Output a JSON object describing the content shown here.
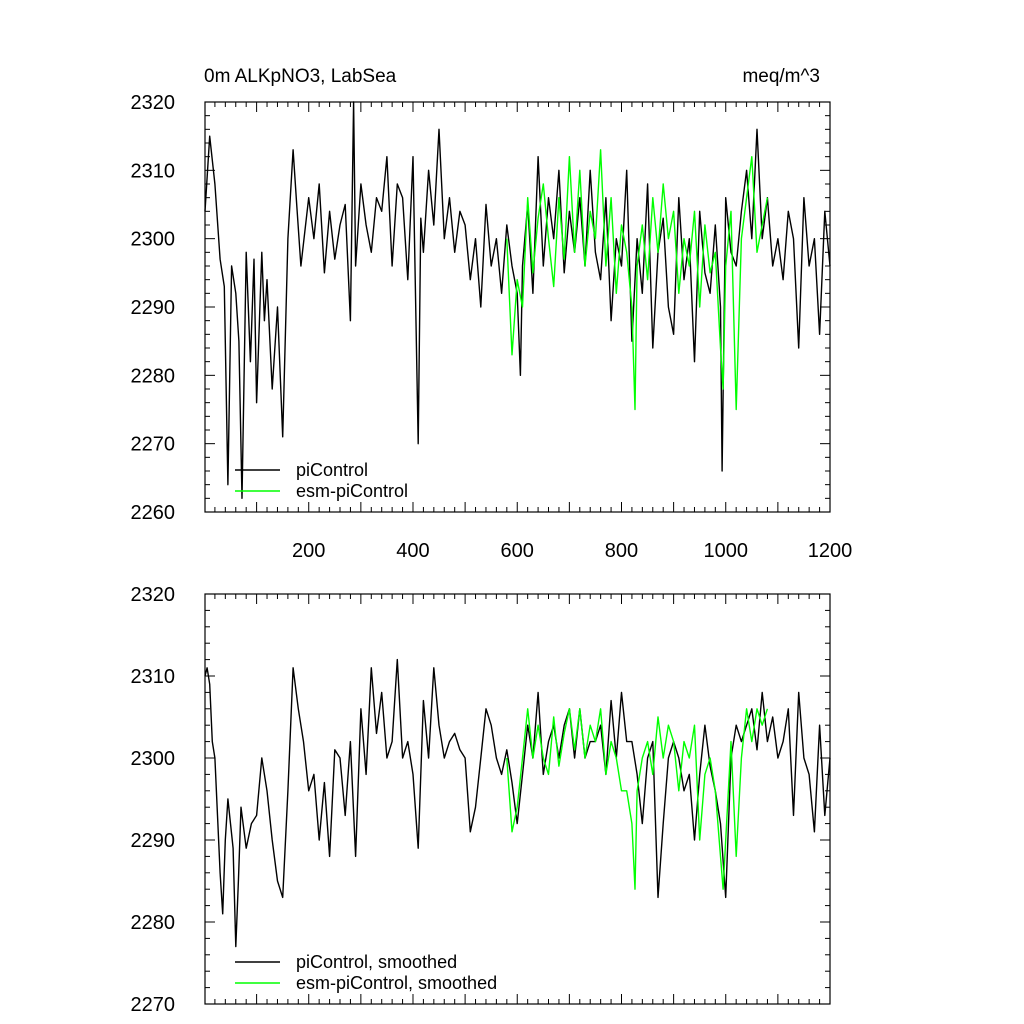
{
  "chart_data": [
    {
      "type": "line",
      "title_left": "0m ALKpNO3, LabSea",
      "title_right": "meq/m^3",
      "xlim": [
        1,
        1200
      ],
      "ylim": [
        2260,
        2320
      ],
      "x_ticks": [
        200,
        400,
        600,
        800,
        1000,
        1200
      ],
      "x_tick_labels": [
        "200",
        "400",
        "600",
        "800",
        "1000",
        "1200"
      ],
      "y_ticks": [
        2260,
        2270,
        2280,
        2290,
        2300,
        2310,
        2320
      ],
      "y_tick_labels": [
        "2260",
        "2270",
        "2280",
        "2290",
        "2300",
        "2310",
        "2320"
      ],
      "legend_position": "bottom-left",
      "series": [
        {
          "name": "piControl",
          "color": "#000000",
          "x": [
            1,
            10,
            20,
            30,
            38,
            45,
            52,
            60,
            66,
            72,
            80,
            88,
            95,
            100,
            110,
            115,
            120,
            130,
            140,
            150,
            160,
            170,
            177,
            185,
            200,
            210,
            220,
            230,
            240,
            250,
            260,
            270,
            280,
            286,
            290,
            300,
            310,
            320,
            330,
            340,
            350,
            360,
            370,
            380,
            390,
            400,
            410,
            415,
            420,
            430,
            440,
            450,
            460,
            470,
            480,
            490,
            500,
            510,
            520,
            530,
            540,
            550,
            560,
            570,
            580,
            590,
            600,
            606,
            610,
            620,
            630,
            640,
            650,
            660,
            670,
            680,
            690,
            700,
            710,
            720,
            730,
            740,
            750,
            760,
            770,
            780,
            790,
            800,
            810,
            820,
            830,
            840,
            850,
            860,
            870,
            880,
            890,
            900,
            910,
            920,
            930,
            940,
            950,
            960,
            970,
            980,
            990,
            993,
            1000,
            1010,
            1020,
            1030,
            1040,
            1050,
            1060,
            1070,
            1080,
            1090,
            1100,
            1110,
            1120,
            1130,
            1140,
            1150,
            1160,
            1170,
            1180,
            1190,
            1200
          ],
          "values": [
            2304,
            2315,
            2308,
            2297,
            2293,
            2264,
            2296,
            2292,
            2285,
            2262,
            2298,
            2282,
            2297,
            2276,
            2298,
            2288,
            2294,
            2278,
            2290,
            2271,
            2300,
            2313,
            2305,
            2296,
            2306,
            2300,
            2308,
            2295,
            2304,
            2297,
            2302,
            2305,
            2288,
            2320,
            2296,
            2308,
            2302,
            2298,
            2306,
            2304,
            2312,
            2296,
            2308,
            2306,
            2294,
            2312,
            2270,
            2303,
            2298,
            2310,
            2302,
            2316,
            2300,
            2306,
            2298,
            2304,
            2302,
            2294,
            2300,
            2290,
            2305,
            2296,
            2300,
            2292,
            2302,
            2296,
            2292,
            2280,
            2296,
            2305,
            2292,
            2312,
            2296,
            2306,
            2300,
            2310,
            2295,
            2304,
            2298,
            2306,
            2296,
            2310,
            2298,
            2294,
            2306,
            2288,
            2300,
            2296,
            2310,
            2285,
            2300,
            2292,
            2308,
            2284,
            2298,
            2303,
            2290,
            2286,
            2306,
            2294,
            2300,
            2282,
            2304,
            2295,
            2292,
            2302,
            2290,
            2266,
            2306,
            2298,
            2296,
            2304,
            2310,
            2300,
            2316,
            2300,
            2306,
            2296,
            2300,
            2294,
            2304,
            2300,
            2284,
            2306,
            2296,
            2300,
            2286,
            2304,
            2296
          ]
        },
        {
          "name": "esm-piControl",
          "color": "#00ff00",
          "x": [
            580,
            590,
            600,
            610,
            620,
            630,
            640,
            650,
            660,
            670,
            680,
            690,
            700,
            710,
            720,
            730,
            740,
            750,
            760,
            770,
            780,
            790,
            800,
            810,
            820,
            826,
            830,
            840,
            850,
            860,
            870,
            880,
            890,
            900,
            910,
            920,
            930,
            940,
            950,
            960,
            970,
            980,
            990,
            995,
            1000,
            1010,
            1020,
            1030,
            1040,
            1050,
            1060,
            1070,
            1080
          ],
          "values": [
            2300,
            2283,
            2294,
            2290,
            2306,
            2295,
            2303,
            2308,
            2300,
            2293,
            2306,
            2297,
            2312,
            2298,
            2310,
            2296,
            2304,
            2300,
            2313,
            2296,
            2306,
            2292,
            2302,
            2298,
            2290,
            2275,
            2296,
            2302,
            2294,
            2306,
            2298,
            2308,
            2300,
            2304,
            2292,
            2300,
            2296,
            2304,
            2290,
            2302,
            2295,
            2298,
            2284,
            2278,
            2296,
            2304,
            2275,
            2300,
            2306,
            2312,
            2298,
            2302,
            2306
          ]
        }
      ]
    },
    {
      "type": "line",
      "xlim": [
        1,
        1200
      ],
      "ylim": [
        2270,
        2320
      ],
      "y_ticks": [
        2270,
        2280,
        2290,
        2300,
        2310,
        2320
      ],
      "y_tick_labels": [
        "2270",
        "2280",
        "2290",
        "2300",
        "2310",
        "2320"
      ],
      "legend_position": "bottom-left",
      "series": [
        {
          "name": "piControl, smoothed",
          "color": "#000000",
          "x": [
            1,
            5,
            10,
            15,
            20,
            25,
            30,
            35,
            40,
            45,
            50,
            55,
            60,
            65,
            70,
            80,
            90,
            100,
            110,
            120,
            130,
            140,
            150,
            160,
            170,
            180,
            190,
            200,
            210,
            220,
            230,
            240,
            250,
            260,
            270,
            280,
            290,
            300,
            310,
            320,
            330,
            340,
            350,
            360,
            370,
            380,
            390,
            400,
            410,
            420,
            430,
            440,
            450,
            460,
            470,
            480,
            490,
            500,
            510,
            520,
            530,
            540,
            550,
            560,
            570,
            580,
            590,
            600,
            610,
            620,
            630,
            640,
            650,
            660,
            670,
            680,
            690,
            700,
            710,
            720,
            730,
            740,
            750,
            760,
            770,
            780,
            790,
            800,
            810,
            820,
            830,
            840,
            850,
            860,
            870,
            880,
            890,
            900,
            910,
            920,
            930,
            940,
            950,
            960,
            970,
            980,
            990,
            1000,
            1010,
            1020,
            1030,
            1040,
            1050,
            1060,
            1070,
            1080,
            1090,
            1100,
            1110,
            1120,
            1130,
            1140,
            1150,
            1160,
            1170,
            1180,
            1190,
            1200
          ],
          "values": [
            2310,
            2311,
            2309,
            2302,
            2300,
            2293,
            2286,
            2281,
            2290,
            2295,
            2292,
            2289,
            2277,
            2285,
            2294,
            2289,
            2292,
            2293,
            2300,
            2296,
            2290,
            2285,
            2283,
            2296,
            2311,
            2306,
            2302,
            2296,
            2298,
            2290,
            2297,
            2288,
            2301,
            2300,
            2293,
            2302,
            2288,
            2306,
            2298,
            2311,
            2303,
            2308,
            2300,
            2302,
            2312,
            2300,
            2302,
            2298,
            2289,
            2307,
            2300,
            2311,
            2304,
            2300,
            2302,
            2303,
            2301,
            2300,
            2291,
            2294,
            2300,
            2306,
            2304,
            2300,
            2298,
            2301,
            2297,
            2292,
            2298,
            2304,
            2300,
            2308,
            2298,
            2302,
            2304,
            2300,
            2304,
            2306,
            2300,
            2306,
            2300,
            2302,
            2302,
            2304,
            2298,
            2307,
            2300,
            2308,
            2302,
            2302,
            2298,
            2292,
            2300,
            2302,
            2283,
            2292,
            2300,
            2302,
            2300,
            2296,
            2298,
            2290,
            2298,
            2304,
            2299,
            2296,
            2292,
            2283,
            2300,
            2304,
            2302,
            2304,
            2306,
            2301,
            2308,
            2302,
            2305,
            2300,
            2302,
            2306,
            2293,
            2308,
            2300,
            2298,
            2291,
            2304,
            2293,
            2300
          ]
        },
        {
          "name": "esm-piControl, smoothed",
          "color": "#00ff00",
          "x": [
            580,
            590,
            600,
            610,
            620,
            630,
            640,
            650,
            660,
            670,
            680,
            690,
            700,
            710,
            720,
            730,
            740,
            750,
            760,
            770,
            780,
            790,
            800,
            810,
            820,
            826,
            830,
            840,
            850,
            860,
            870,
            880,
            890,
            900,
            910,
            920,
            930,
            940,
            950,
            960,
            970,
            980,
            990,
            995,
            1000,
            1010,
            1020,
            1030,
            1040,
            1050,
            1060,
            1070,
            1080
          ],
          "values": [
            2300,
            2291,
            2294,
            2300,
            2306,
            2300,
            2304,
            2300,
            2298,
            2305,
            2299,
            2303,
            2306,
            2301,
            2306,
            2300,
            2304,
            2302,
            2306,
            2298,
            2302,
            2300,
            2296,
            2296,
            2292,
            2284,
            2296,
            2300,
            2302,
            2298,
            2305,
            2300,
            2304,
            2302,
            2296,
            2302,
            2300,
            2304,
            2290,
            2298,
            2300,
            2296,
            2288,
            2284,
            2290,
            2302,
            2288,
            2300,
            2306,
            2302,
            2306,
            2304,
            2306
          ]
        }
      ]
    }
  ]
}
